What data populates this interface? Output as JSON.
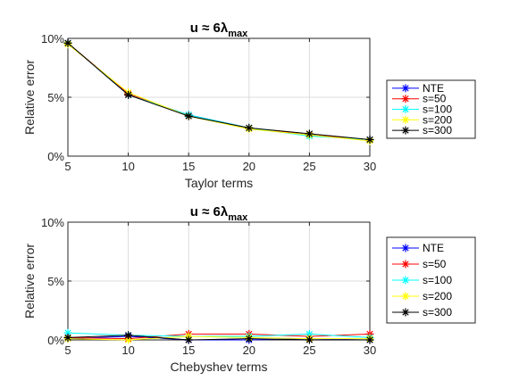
{
  "chart_data": [
    {
      "type": "line",
      "title": "u ≈ 6λ",
      "title_sub": "max",
      "xlabel": "Taylor terms",
      "ylabel": "Relative error",
      "x": [
        5,
        10,
        15,
        20,
        25,
        30
      ],
      "xlim": [
        5,
        30
      ],
      "ylim": [
        0,
        10
      ],
      "xticks": [
        "5",
        "10",
        "15",
        "20",
        "25",
        "30"
      ],
      "yticks": [
        "0%",
        "5%",
        "10%"
      ],
      "grid": true,
      "legend_placement": "outside-right",
      "series": [
        {
          "name": "NTE",
          "color": "#0000ff",
          "values": [
            9.6,
            5.2,
            3.5,
            2.4,
            1.8,
            1.4
          ]
        },
        {
          "name": "s=50",
          "color": "#ff0000",
          "values": [
            9.6,
            5.3,
            3.4,
            2.4,
            1.8,
            1.4
          ]
        },
        {
          "name": "s=100",
          "color": "#00ffff",
          "values": [
            9.6,
            5.2,
            3.5,
            2.4,
            1.7,
            1.4
          ]
        },
        {
          "name": "s=200",
          "color": "#ffff00",
          "values": [
            9.5,
            5.4,
            3.4,
            2.3,
            1.8,
            1.3
          ]
        },
        {
          "name": "s=300",
          "color": "#000000",
          "values": [
            9.6,
            5.2,
            3.4,
            2.4,
            1.9,
            1.4
          ]
        }
      ]
    },
    {
      "type": "line",
      "title": "u ≈ 6λ",
      "title_sub": "max",
      "xlabel": "Chebyshev terms",
      "ylabel": "Relative error",
      "x": [
        5,
        10,
        15,
        20,
        25,
        30
      ],
      "xlim": [
        5,
        30
      ],
      "ylim": [
        0,
        10
      ],
      "xticks": [
        "5",
        "10",
        "15",
        "20",
        "25",
        "30"
      ],
      "yticks": [
        "0%",
        "5%",
        "10%"
      ],
      "grid": true,
      "legend_placement": "outside-right",
      "series": [
        {
          "name": "NTE",
          "color": "#0000ff",
          "values": [
            0.1,
            0.3,
            0.0,
            0.0,
            0.1,
            0.0
          ]
        },
        {
          "name": "s=50",
          "color": "#ff0000",
          "values": [
            0.2,
            0.1,
            0.5,
            0.5,
            0.3,
            0.5
          ]
        },
        {
          "name": "s=100",
          "color": "#00ffff",
          "values": [
            0.6,
            0.4,
            0.3,
            0.3,
            0.5,
            0.2
          ]
        },
        {
          "name": "s=200",
          "color": "#ffff00",
          "values": [
            0.1,
            0.0,
            0.3,
            0.2,
            0.1,
            0.1
          ]
        },
        {
          "name": "s=300",
          "color": "#000000",
          "values": [
            0.2,
            0.4,
            0.0,
            0.1,
            0.0,
            0.0
          ]
        }
      ]
    }
  ]
}
